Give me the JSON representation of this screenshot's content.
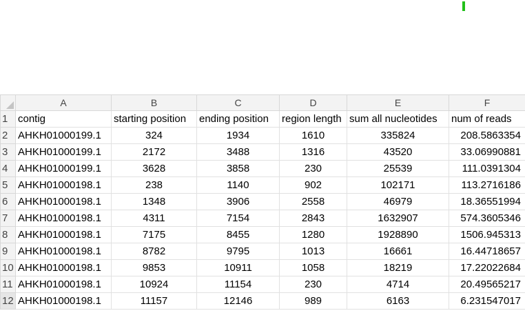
{
  "columns": [
    "A",
    "B",
    "C",
    "D",
    "E",
    "F"
  ],
  "headers": [
    "contig",
    "starting position",
    "ending position",
    "region length",
    "sum all nucleotides",
    "num of reads"
  ],
  "row_numbers": [
    "1",
    "2",
    "3",
    "4",
    "5",
    "6",
    "7",
    "8",
    "9",
    "10",
    "11",
    "12"
  ],
  "rows": [
    [
      "AHKH01000199.1",
      "324",
      "1934",
      "1610",
      "335824",
      "208.5863354"
    ],
    [
      "AHKH01000199.1",
      "2172",
      "3488",
      "1316",
      "43520",
      "33.06990881"
    ],
    [
      "AHKH01000199.1",
      "3628",
      "3858",
      "230",
      "25539",
      "111.0391304"
    ],
    [
      "AHKH01000198.1",
      "238",
      "1140",
      "902",
      "102171",
      "113.2716186"
    ],
    [
      "AHKH01000198.1",
      "1348",
      "3906",
      "2558",
      "46979",
      "18.36551994"
    ],
    [
      "AHKH01000198.1",
      "4311",
      "7154",
      "2843",
      "1632907",
      "574.3605346"
    ],
    [
      "AHKH01000198.1",
      "7175",
      "8455",
      "1280",
      "1928890",
      "1506.945313"
    ],
    [
      "AHKH01000198.1",
      "8782",
      "9795",
      "1013",
      "16661",
      "16.44718657"
    ],
    [
      "AHKH01000198.1",
      "9853",
      "10911",
      "1058",
      "18219",
      "17.22022684"
    ],
    [
      "AHKH01000198.1",
      "10924",
      "11154",
      "230",
      "4714",
      "20.49565217"
    ],
    [
      "AHKH01000198.1",
      "11157",
      "12146",
      "989",
      "6163",
      "6.231547017"
    ]
  ],
  "colors": {
    "header_bg": "#f3f3f3",
    "gridline": "#e1e1e1",
    "marker": "#22c01a"
  }
}
